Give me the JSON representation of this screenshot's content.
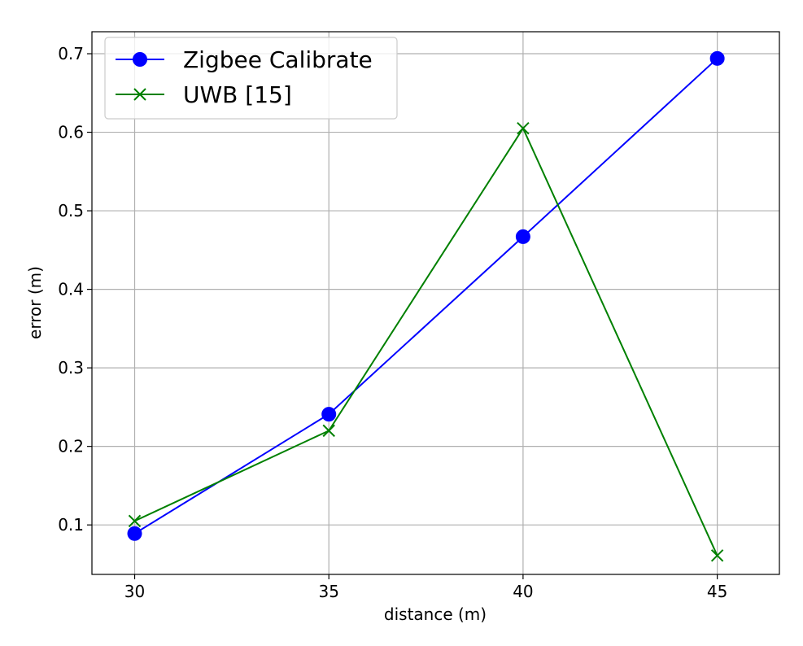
{
  "chart_data": {
    "type": "line",
    "title": "",
    "xlabel": "distance (m)",
    "ylabel": "error (m)",
    "x": [
      30,
      35,
      40,
      45
    ],
    "xticks": [
      "30",
      "35",
      "40",
      "45"
    ],
    "yticks": [
      "0.1",
      "0.2",
      "0.3",
      "0.4",
      "0.5",
      "0.6",
      "0.7"
    ],
    "xlim": [
      28.9,
      46.6
    ],
    "ylim": [
      0.037,
      0.728
    ],
    "grid": true,
    "legend_position": "top-left",
    "series": [
      {
        "name": "Zigbee Calibrate",
        "values": [
          0.089,
          0.241,
          0.467,
          0.694
        ],
        "color": "#0000ff",
        "marker": "circle"
      },
      {
        "name": "UWB [15]",
        "values": [
          0.105,
          0.22,
          0.605,
          0.061
        ],
        "color": "#008000",
        "marker": "x"
      }
    ]
  }
}
